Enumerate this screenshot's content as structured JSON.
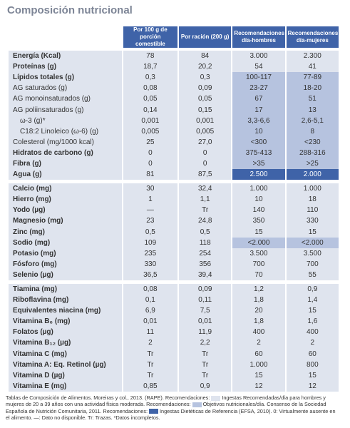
{
  "header": {
    "title": "Composición nutricional"
  },
  "table": {
    "columns": [
      "Por 100 g de porción comestible",
      "Por ración (200 g)",
      "Recomendaciones día-hombres",
      "Recomendaciones día-mujeres"
    ],
    "sections": [
      {
        "rows": [
          {
            "label": "Energía (Kcal)",
            "bold": true,
            "values": [
              "78",
              "84",
              "3.000",
              "2.300"
            ],
            "shade": "light"
          },
          {
            "label": "Proteínas (g)",
            "bold": true,
            "values": [
              "18,7",
              "20,2",
              "54",
              "41"
            ],
            "shade": "light"
          },
          {
            "label": "Lípidos totales (g)",
            "bold": true,
            "values": [
              "0,3",
              "0,3",
              "100-117",
              "77-89"
            ],
            "shade": "medium"
          },
          {
            "label": "AG saturados (g)",
            "bold": false,
            "values": [
              "0,08",
              "0,09",
              "23-27",
              "18-20"
            ],
            "shade": "medium"
          },
          {
            "label": "AG monoinsaturados (g)",
            "bold": false,
            "values": [
              "0,05",
              "0,05",
              "67",
              "51"
            ],
            "shade": "medium"
          },
          {
            "label": "AG poliinsaturados (g)",
            "bold": false,
            "values": [
              "0,14",
              "0,15",
              "17",
              "13"
            ],
            "shade": "medium"
          },
          {
            "label": "ω-3 (g)*",
            "bold": false,
            "indent": true,
            "values": [
              "0,001",
              "0,001",
              "3,3-6,6",
              "2,6-5,1"
            ],
            "shade": "medium"
          },
          {
            "label": "C18:2 Linoleico (ω-6) (g)",
            "bold": false,
            "indent": true,
            "values": [
              "0,005",
              "0,005",
              "10",
              "8"
            ],
            "shade": "medium"
          },
          {
            "label": "Colesterol (mg/1000 kcal)",
            "bold": false,
            "values": [
              "25",
              "27,0",
              "<300",
              "<230"
            ],
            "shade": "medium"
          },
          {
            "label": "Hidratos de carbono (g)",
            "bold": true,
            "values": [
              "0",
              "0",
              "375-413",
              "288-316"
            ],
            "shade": "medium"
          },
          {
            "label": "Fibra (g)",
            "bold": true,
            "values": [
              "0",
              "0",
              ">35",
              ">25"
            ],
            "shade": "medium"
          },
          {
            "label": "Agua (g)",
            "bold": true,
            "values": [
              "81",
              "87,5",
              "2.500",
              "2.000"
            ],
            "shade": "dark"
          }
        ]
      },
      {
        "rows": [
          {
            "label": "Calcio (mg)",
            "bold": true,
            "values": [
              "30",
              "32,4",
              "1.000",
              "1.000"
            ],
            "shade": "light"
          },
          {
            "label": "Hierro (mg)",
            "bold": true,
            "values": [
              "1",
              "1,1",
              "10",
              "18"
            ],
            "shade": "light"
          },
          {
            "label": "Yodo (µg)",
            "bold": true,
            "values": [
              "—",
              "Tr",
              "140",
              "110"
            ],
            "shade": "light"
          },
          {
            "label": "Magnesio (mg)",
            "bold": true,
            "values": [
              "23",
              "24,8",
              "350",
              "330"
            ],
            "shade": "light"
          },
          {
            "label": "Zinc (mg)",
            "bold": true,
            "values": [
              "0,5",
              "0,5",
              "15",
              "15"
            ],
            "shade": "light"
          },
          {
            "label": "Sodio (mg)",
            "bold": true,
            "values": [
              "109",
              "118",
              "<2.000",
              "<2.000"
            ],
            "shade": "medium"
          },
          {
            "label": "Potasio (mg)",
            "bold": true,
            "values": [
              "235",
              "254",
              "3.500",
              "3.500"
            ],
            "shade": "light"
          },
          {
            "label": "Fósforo (mg)",
            "bold": true,
            "values": [
              "330",
              "356",
              "700",
              "700"
            ],
            "shade": "light"
          },
          {
            "label": "Selenio (µg)",
            "bold": true,
            "values": [
              "36,5",
              "39,4",
              "70",
              "55"
            ],
            "shade": "light"
          }
        ]
      },
      {
        "rows": [
          {
            "label": "Tiamina (mg)",
            "bold": true,
            "values": [
              "0,08",
              "0,09",
              "1,2",
              "0,9"
            ],
            "shade": "light"
          },
          {
            "label": "Riboflavina (mg)",
            "bold": true,
            "values": [
              "0,1",
              "0,11",
              "1,8",
              "1,4"
            ],
            "shade": "light"
          },
          {
            "label": "Equivalentes niacina (mg)",
            "bold": true,
            "values": [
              "6,9",
              "7,5",
              "20",
              "15"
            ],
            "shade": "light"
          },
          {
            "label": "Vitamina B₆ (mg)",
            "bold": true,
            "values": [
              "0,01",
              "0,01",
              "1,8",
              "1,6"
            ],
            "shade": "light"
          },
          {
            "label": "Folatos (µg)",
            "bold": true,
            "values": [
              "11",
              "11,9",
              "400",
              "400"
            ],
            "shade": "light"
          },
          {
            "label": "Vitamina B₁₂ (µg)",
            "bold": true,
            "values": [
              "2",
              "2,2",
              "2",
              "2"
            ],
            "shade": "light"
          },
          {
            "label": "Vitamina C (mg)",
            "bold": true,
            "values": [
              "Tr",
              "Tr",
              "60",
              "60"
            ],
            "shade": "light"
          },
          {
            "label": "Vitamina A: Eq. Retinol (µg)",
            "bold": true,
            "values": [
              "Tr",
              "Tr",
              "1.000",
              "800"
            ],
            "shade": "light"
          },
          {
            "label": "Vitamina D (µg)",
            "bold": true,
            "values": [
              "Tr",
              "Tr",
              "15",
              "15"
            ],
            "shade": "light"
          },
          {
            "label": "Vitamina E (mg)",
            "bold": true,
            "values": [
              "0,85",
              "0,9",
              "12",
              "12"
            ],
            "shade": "light"
          }
        ]
      }
    ]
  },
  "footnote": {
    "parts": [
      "Tablas de Composición de Alimentos. Moreiras y col., 2013. (RAPE). Recomendaciones:",
      "Ingestas Recomendadas/día para hombres y mujeres de 20 a 39 años con una actividad física moderada. Recomendaciones:",
      "Objetivos nutricionales/día. Consenso de la Sociedad Española de Nutrición Comunitaria, 2011. Recomendaciones:",
      "Ingestas Dietéticas de Referencia (EFSA, 2010). 0: Virtualmente ausente en el alimento. —: Dato no disponible. Tr: Trazas. *Datos incompletos."
    ]
  }
}
